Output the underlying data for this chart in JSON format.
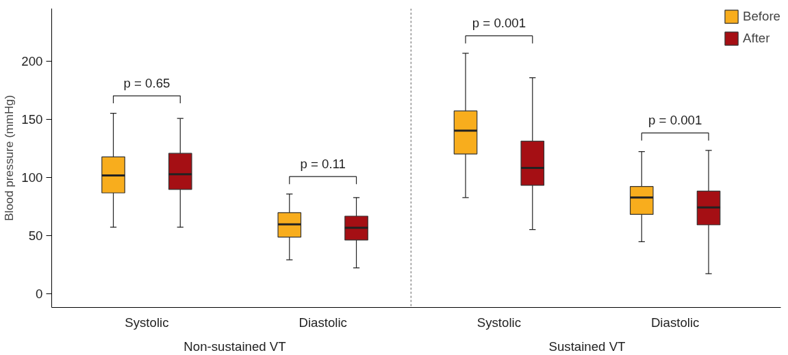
{
  "chart_data": {
    "type": "box",
    "ylabel": "Blood pressure (mmHg)",
    "categories": [
      "Systolic",
      "Diastolic",
      "Systolic",
      "Diastolic"
    ],
    "ylim": [
      -12,
      245
    ],
    "yticks": [
      0,
      50,
      100,
      150,
      200
    ],
    "grid": false,
    "legend": "top right",
    "series": [
      {
        "name": "Before",
        "color": "#f8ad1d",
        "boxes": [
          {
            "low": 57,
            "q1": 86.5,
            "median": 101.5,
            "q3": 117.5,
            "high": 155
          },
          {
            "low": 29,
            "q1": 48.5,
            "median": 59.5,
            "q3": 69.5,
            "high": 85.5
          },
          {
            "low": 82.5,
            "q1": 120,
            "median": 140,
            "q3": 157,
            "high": 206.5
          },
          {
            "low": 44.5,
            "q1": 68,
            "median": 82.5,
            "q3": 92,
            "high": 122
          }
        ]
      },
      {
        "name": "After",
        "color": "#a50f14",
        "boxes": [
          {
            "low": 57,
            "q1": 89.5,
            "median": 102.5,
            "q3": 120.5,
            "high": 150.5
          },
          {
            "low": 22,
            "q1": 46,
            "median": 56.5,
            "q3": 66.5,
            "high": 82.5
          },
          {
            "low": 55,
            "q1": 93,
            "median": 108,
            "q3": 131,
            "high": 185.5
          },
          {
            "low": 17,
            "q1": 59,
            "median": 74,
            "q3": 88,
            "high": 123
          }
        ]
      }
    ],
    "annotations": [
      "p = 0.65",
      "p = 0.11",
      "p = 0.001",
      "p = 0.001",
      "Non-sustained VT",
      "Sustained VT"
    ]
  }
}
